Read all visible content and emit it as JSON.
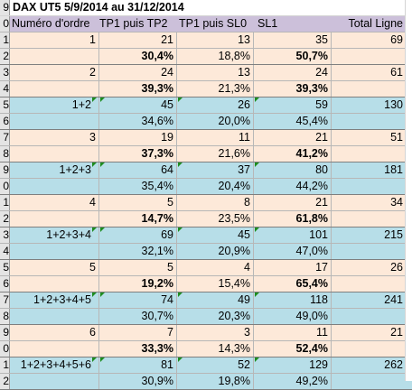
{
  "title_row_number": "9",
  "title": "DAX UT5 5/9/2014 au 31/12/2014",
  "headers": {
    "row_number": "0",
    "col1": "Numéro d'ordre",
    "col2": "TP1 puis TP2",
    "col3": "TP1 puis SL0",
    "col4": "SL1",
    "col5": "Total Ligne"
  },
  "rows": [
    {
      "rn": "1",
      "style": "peach",
      "c1": "1",
      "c2": "21",
      "c3": "13",
      "c4": "35",
      "c5": "69",
      "tri": false
    },
    {
      "rn": "2",
      "style": "peach",
      "c1": "",
      "c2": "30,4%",
      "c3": "18,8%",
      "c4": "50,7%",
      "c5": "",
      "b2": true,
      "b4": true
    },
    {
      "rn": "3",
      "style": "peach",
      "c1": "2",
      "c2": "24",
      "c3": "13",
      "c4": "24",
      "c5": "61"
    },
    {
      "rn": "4",
      "style": "peach",
      "c1": "",
      "c2": "39,3%",
      "c3": "21,3%",
      "c4": "39,3%",
      "c5": "",
      "b2": true,
      "b4": true
    },
    {
      "rn": "5",
      "style": "blue",
      "c1": "1+2",
      "c2": "45",
      "c3": "26",
      "c4": "59",
      "c5": "130",
      "tri": true
    },
    {
      "rn": "6",
      "style": "blue",
      "c1": "",
      "c2": "34,6%",
      "c3": "20,0%",
      "c4": "45,4%",
      "c5": ""
    },
    {
      "rn": "7",
      "style": "peach",
      "c1": "3",
      "c2": "19",
      "c3": "11",
      "c4": "21",
      "c5": "51"
    },
    {
      "rn": "8",
      "style": "peach",
      "c1": "",
      "c2": "37,3%",
      "c3": "21,6%",
      "c4": "41,2%",
      "c5": "",
      "b2": true,
      "b4": true
    },
    {
      "rn": "9",
      "style": "blue",
      "c1": "1+2+3",
      "c2": "64",
      "c3": "37",
      "c4": "80",
      "c5": "181",
      "tri": true
    },
    {
      "rn": "0",
      "style": "blue",
      "c1": "",
      "c2": "35,4%",
      "c3": "20,4%",
      "c4": "44,2%",
      "c5": ""
    },
    {
      "rn": "1",
      "style": "peach",
      "c1": "4",
      "c2": "5",
      "c3": "8",
      "c4": "21",
      "c5": "34"
    },
    {
      "rn": "2",
      "style": "peach",
      "c1": "",
      "c2": "14,7%",
      "c3": "23,5%",
      "c4": "61,8%",
      "c5": "",
      "b2": true,
      "b4": true
    },
    {
      "rn": "3",
      "style": "blue",
      "c1": "1+2+3+4",
      "c2": "69",
      "c3": "45",
      "c4": "101",
      "c5": "215",
      "tri": true
    },
    {
      "rn": "4",
      "style": "blue",
      "c1": "",
      "c2": "32,1%",
      "c3": "20,9%",
      "c4": "47,0%",
      "c5": ""
    },
    {
      "rn": "5",
      "style": "peach",
      "c1": "5",
      "c2": "5",
      "c3": "4",
      "c4": "17",
      "c5": "26"
    },
    {
      "rn": "6",
      "style": "peach",
      "c1": "",
      "c2": "19,2%",
      "c3": "15,4%",
      "c4": "65,4%",
      "c5": "",
      "b2": true,
      "b4": true
    },
    {
      "rn": "7",
      "style": "blue",
      "c1": "1+2+3+4+5",
      "c2": "74",
      "c3": "49",
      "c4": "118",
      "c5": "241",
      "tri": true
    },
    {
      "rn": "8",
      "style": "blue",
      "c1": "",
      "c2": "30,7%",
      "c3": "20,3%",
      "c4": "49,0%",
      "c5": ""
    },
    {
      "rn": "9",
      "style": "peach",
      "c1": "6",
      "c2": "7",
      "c3": "3",
      "c4": "11",
      "c5": "21"
    },
    {
      "rn": "0",
      "style": "peach",
      "c1": "",
      "c2": "33,3%",
      "c3": "14,3%",
      "c4": "52,4%",
      "c5": "",
      "b2": true,
      "b4": true
    },
    {
      "rn": "1",
      "style": "blue",
      "c1": "1+2+3+4+5+6",
      "c2": "81",
      "c3": "52",
      "c4": "129",
      "c5": "262",
      "tri": true
    },
    {
      "rn": "2",
      "style": "blue",
      "c1": "",
      "c2": "30,9%",
      "c3": "19,8%",
      "c4": "49,2%",
      "c5": ""
    }
  ],
  "colors": {
    "header_bg": "#ccc0da",
    "peach_bg": "#fde9d9",
    "blue_bg": "#b7dee8",
    "indicator": "#1e8c1e"
  }
}
